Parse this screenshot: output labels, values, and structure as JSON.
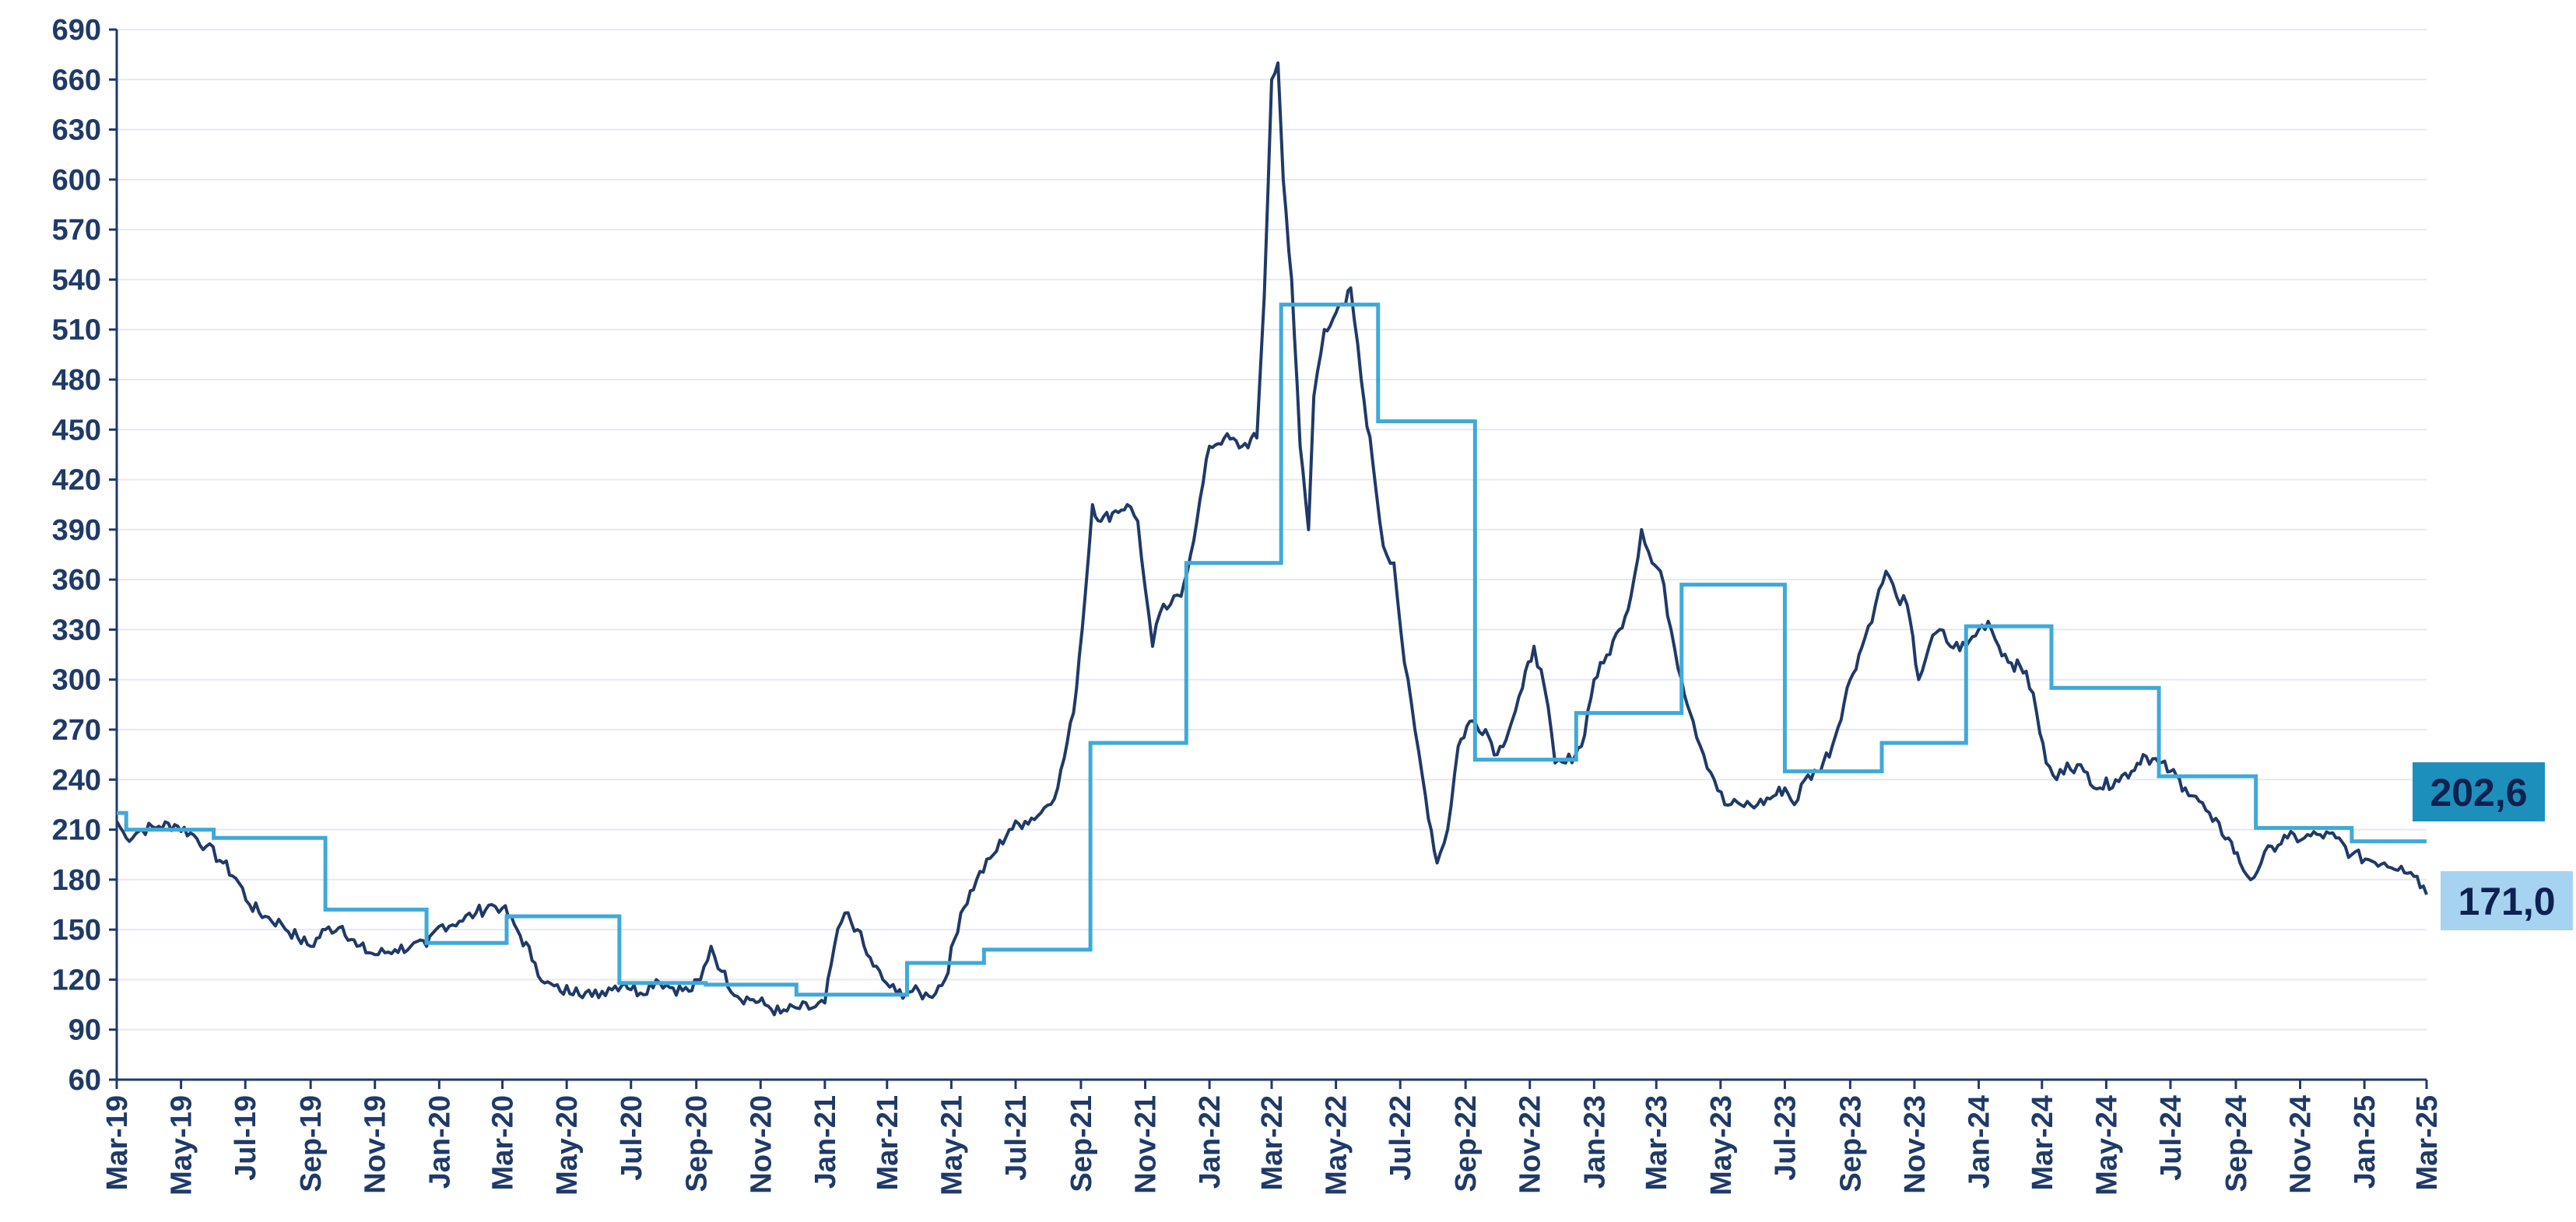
{
  "chart_data": {
    "type": "line",
    "title": "",
    "xlabel": "",
    "ylabel": "",
    "ylim": [
      60,
      690
    ],
    "xrange": [
      "2019-03",
      "2025-03"
    ],
    "y_ticks": [
      "690",
      "660",
      "630",
      "600",
      "570",
      "540",
      "510",
      "480",
      "450",
      "420",
      "390",
      "360",
      "330",
      "300",
      "270",
      "240",
      "210",
      "180",
      "150",
      "120",
      "90",
      "60"
    ],
    "x_tick_labels": [
      "Mar-19",
      "May-19",
      "Jul-19",
      "Sep-19",
      "Nov-19",
      "Jan-20",
      "Mar-20",
      "May-20",
      "Jul-20",
      "Sep-20",
      "Nov-20",
      "Jan-21",
      "Mar-21",
      "May-21",
      "Jul-21",
      "Sep-21",
      "Nov-21",
      "Jan-22",
      "Mar-22",
      "May-22",
      "Jul-22",
      "Sep-22",
      "Nov-22",
      "Jan-23",
      "Mar-23",
      "May-23",
      "Jul-23",
      "Sep-23",
      "Nov-23",
      "Jan-24",
      "Mar-24",
      "May-24",
      "Jul-24",
      "Sep-24",
      "Nov-24",
      "Jan-25",
      "Mar-25"
    ],
    "grid": true,
    "colors": {
      "daily": "#1f3a68",
      "step": "#3fa9d8",
      "axis": "#1f3a68",
      "grid": "#e6e9ef"
    },
    "series": [
      {
        "kind": "daily",
        "points": [
          [
            "2019-03-01",
            215
          ],
          [
            "2019-03-10",
            205
          ],
          [
            "2019-03-25",
            210
          ],
          [
            "2019-04-10",
            212
          ],
          [
            "2019-04-25",
            213
          ],
          [
            "2019-05-10",
            208
          ],
          [
            "2019-05-25",
            200
          ],
          [
            "2019-06-10",
            190
          ],
          [
            "2019-06-25",
            178
          ],
          [
            "2019-07-05",
            165
          ],
          [
            "2019-07-20",
            158
          ],
          [
            "2019-08-05",
            153
          ],
          [
            "2019-08-20",
            145
          ],
          [
            "2019-09-01",
            140
          ],
          [
            "2019-09-15",
            150
          ],
          [
            "2019-10-01",
            152
          ],
          [
            "2019-10-15",
            140
          ],
          [
            "2019-11-01",
            135
          ],
          [
            "2019-11-20",
            138
          ],
          [
            "2019-12-05",
            140
          ],
          [
            "2019-12-20",
            140
          ],
          [
            "2020-01-01",
            152
          ],
          [
            "2020-01-20",
            155
          ],
          [
            "2020-02-05",
            160
          ],
          [
            "2020-02-20",
            165
          ],
          [
            "2020-03-01",
            163
          ],
          [
            "2020-03-15",
            150
          ],
          [
            "2020-04-01",
            130
          ],
          [
            "2020-04-10",
            118
          ],
          [
            "2020-04-25",
            113
          ],
          [
            "2020-05-10",
            115
          ],
          [
            "2020-05-25",
            110
          ],
          [
            "2020-06-10",
            115
          ],
          [
            "2020-06-25",
            118
          ],
          [
            "2020-07-10",
            112
          ],
          [
            "2020-07-25",
            120
          ],
          [
            "2020-08-10",
            115
          ],
          [
            "2020-08-25",
            113
          ],
          [
            "2020-09-05",
            120
          ],
          [
            "2020-09-15",
            140
          ],
          [
            "2020-09-25",
            125
          ],
          [
            "2020-10-10",
            110
          ],
          [
            "2020-10-25",
            108
          ],
          [
            "2020-11-05",
            105
          ],
          [
            "2020-11-20",
            100
          ],
          [
            "2020-12-05",
            103
          ],
          [
            "2020-12-20",
            103
          ],
          [
            "2021-01-01",
            106
          ],
          [
            "2021-01-10",
            140
          ],
          [
            "2021-01-20",
            160
          ],
          [
            "2021-02-01",
            150
          ],
          [
            "2021-02-10",
            135
          ],
          [
            "2021-02-25",
            120
          ],
          [
            "2021-03-10",
            112
          ],
          [
            "2021-03-25",
            113
          ],
          [
            "2021-04-10",
            110
          ],
          [
            "2021-04-25",
            120
          ],
          [
            "2021-05-10",
            160
          ],
          [
            "2021-05-25",
            180
          ],
          [
            "2021-06-10",
            195
          ],
          [
            "2021-06-25",
            210
          ],
          [
            "2021-07-10",
            215
          ],
          [
            "2021-07-25",
            220
          ],
          [
            "2021-08-10",
            235
          ],
          [
            "2021-08-25",
            280
          ],
          [
            "2021-09-05",
            350
          ],
          [
            "2021-09-12",
            405
          ],
          [
            "2021-09-20",
            395
          ],
          [
            "2021-10-01",
            400
          ],
          [
            "2021-10-15",
            405
          ],
          [
            "2021-10-25",
            395
          ],
          [
            "2021-11-01",
            355
          ],
          [
            "2021-11-08",
            320
          ],
          [
            "2021-11-15",
            340
          ],
          [
            "2021-11-25",
            345
          ],
          [
            "2021-12-05",
            350
          ],
          [
            "2021-12-20",
            395
          ],
          [
            "2022-01-01",
            440
          ],
          [
            "2022-01-15",
            445
          ],
          [
            "2022-02-01",
            440
          ],
          [
            "2022-02-15",
            445
          ],
          [
            "2022-02-22",
            530
          ],
          [
            "2022-03-01",
            660
          ],
          [
            "2022-03-07",
            670
          ],
          [
            "2022-03-12",
            600
          ],
          [
            "2022-03-20",
            540
          ],
          [
            "2022-03-28",
            440
          ],
          [
            "2022-04-05",
            390
          ],
          [
            "2022-04-10",
            470
          ],
          [
            "2022-04-20",
            510
          ],
          [
            "2022-05-01",
            520
          ],
          [
            "2022-05-10",
            525
          ],
          [
            "2022-05-15",
            535
          ],
          [
            "2022-05-25",
            480
          ],
          [
            "2022-06-05",
            430
          ],
          [
            "2022-06-15",
            380
          ],
          [
            "2022-06-25",
            370
          ],
          [
            "2022-07-05",
            310
          ],
          [
            "2022-07-15",
            270
          ],
          [
            "2022-07-25",
            230
          ],
          [
            "2022-08-05",
            190
          ],
          [
            "2022-08-15",
            210
          ],
          [
            "2022-08-25",
            260
          ],
          [
            "2022-09-05",
            275
          ],
          [
            "2022-09-20",
            270
          ],
          [
            "2022-10-01",
            255
          ],
          [
            "2022-10-15",
            275
          ],
          [
            "2022-10-25",
            295
          ],
          [
            "2022-11-05",
            320
          ],
          [
            "2022-11-15",
            295
          ],
          [
            "2022-11-25",
            250
          ],
          [
            "2022-12-05",
            250
          ],
          [
            "2022-12-20",
            260
          ],
          [
            "2023-01-01",
            300
          ],
          [
            "2023-01-10",
            310
          ],
          [
            "2023-01-25",
            330
          ],
          [
            "2023-02-05",
            350
          ],
          [
            "2023-02-15",
            390
          ],
          [
            "2023-02-25",
            370
          ],
          [
            "2023-03-05",
            365
          ],
          [
            "2023-03-15",
            330
          ],
          [
            "2023-03-25",
            300
          ],
          [
            "2023-04-05",
            275
          ],
          [
            "2023-04-15",
            255
          ],
          [
            "2023-04-25",
            240
          ],
          [
            "2023-05-05",
            225
          ],
          [
            "2023-05-20",
            225
          ],
          [
            "2023-06-05",
            225
          ],
          [
            "2023-06-20",
            230
          ],
          [
            "2023-07-01",
            235
          ],
          [
            "2023-07-10",
            225
          ],
          [
            "2023-07-20",
            240
          ],
          [
            "2023-08-01",
            245
          ],
          [
            "2023-08-15",
            260
          ],
          [
            "2023-09-01",
            300
          ],
          [
            "2023-09-15",
            325
          ],
          [
            "2023-09-25",
            345
          ],
          [
            "2023-10-05",
            365
          ],
          [
            "2023-10-15",
            350
          ],
          [
            "2023-10-25",
            345
          ],
          [
            "2023-11-05",
            300
          ],
          [
            "2023-11-15",
            320
          ],
          [
            "2023-11-25",
            330
          ],
          [
            "2023-12-05",
            320
          ],
          [
            "2023-12-20",
            320
          ],
          [
            "2024-01-01",
            330
          ],
          [
            "2024-01-10",
            335
          ],
          [
            "2024-01-20",
            320
          ],
          [
            "2024-02-01",
            310
          ],
          [
            "2024-02-15",
            305
          ],
          [
            "2024-02-25",
            280
          ],
          [
            "2024-03-05",
            250
          ],
          [
            "2024-03-15",
            240
          ],
          [
            "2024-03-25",
            250
          ],
          [
            "2024-04-10",
            245
          ],
          [
            "2024-04-25",
            235
          ],
          [
            "2024-05-10",
            240
          ],
          [
            "2024-05-25",
            245
          ],
          [
            "2024-06-05",
            255
          ],
          [
            "2024-06-20",
            250
          ],
          [
            "2024-07-01",
            245
          ],
          [
            "2024-07-15",
            235
          ],
          [
            "2024-07-25",
            230
          ],
          [
            "2024-08-10",
            215
          ],
          [
            "2024-08-25",
            205
          ],
          [
            "2024-09-05",
            190
          ],
          [
            "2024-09-15",
            180
          ],
          [
            "2024-09-25",
            190
          ],
          [
            "2024-10-05",
            200
          ],
          [
            "2024-10-20",
            205
          ],
          [
            "2024-11-05",
            205
          ],
          [
            "2024-11-20",
            207
          ],
          [
            "2024-12-05",
            205
          ],
          [
            "2024-12-20",
            195
          ],
          [
            "2025-01-05",
            192
          ],
          [
            "2025-01-20",
            190
          ],
          [
            "2025-02-05",
            188
          ],
          [
            "2025-02-20",
            182
          ],
          [
            "2025-03-01",
            171
          ]
        ]
      },
      {
        "kind": "step",
        "points": [
          [
            "2019-03-01",
            220
          ],
          [
            "2019-03-10",
            210
          ],
          [
            "2019-06-01",
            205
          ],
          [
            "2019-09-15",
            162
          ],
          [
            "2019-12-20",
            142
          ],
          [
            "2020-03-05",
            158
          ],
          [
            "2020-06-20",
            118
          ],
          [
            "2020-09-10",
            117
          ],
          [
            "2020-12-05",
            111
          ],
          [
            "2021-03-20",
            130
          ],
          [
            "2021-06-01",
            138
          ],
          [
            "2021-09-10",
            262
          ],
          [
            "2021-12-10",
            370
          ],
          [
            "2022-03-10",
            525
          ],
          [
            "2022-06-10",
            455
          ],
          [
            "2022-09-10",
            252
          ],
          [
            "2022-12-15",
            280
          ],
          [
            "2023-03-25",
            357
          ],
          [
            "2023-07-01",
            245
          ],
          [
            "2023-10-01",
            262
          ],
          [
            "2023-12-20",
            332
          ],
          [
            "2024-03-10",
            295
          ],
          [
            "2024-06-20",
            242
          ],
          [
            "2024-09-20",
            211
          ],
          [
            "2024-12-20",
            203
          ],
          [
            "2025-03-01",
            203
          ]
        ]
      }
    ],
    "end_labels": [
      {
        "text": "202,6",
        "value": 202.6,
        "bg": "#1d8fbb",
        "fg": "#0e2150"
      },
      {
        "text": "171,0",
        "value": 171.0,
        "bg": "#a6d3ef",
        "fg": "#0e2150"
      }
    ]
  }
}
